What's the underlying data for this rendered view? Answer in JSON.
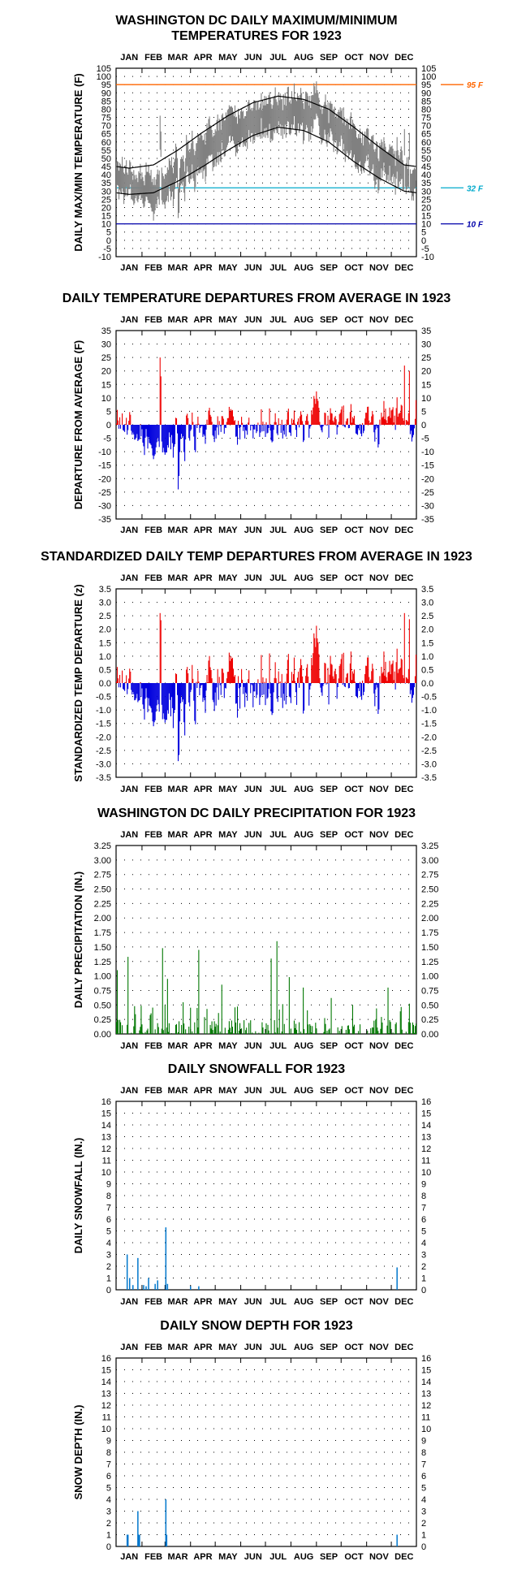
{
  "months": [
    "JAN",
    "FEB",
    "MAR",
    "APR",
    "MAY",
    "JUN",
    "JUL",
    "AUG",
    "SEP",
    "OCT",
    "NOV",
    "DEC"
  ],
  "colors": {
    "red": "#ee0000",
    "blue": "#0000dd",
    "green": "#007700",
    "snow": "#0077cc",
    "obs": "#808080",
    "orange": "#ff6600",
    "cyan": "#00aacc",
    "navy": "#0000aa"
  },
  "panels": [
    {
      "id": "temp",
      "title": [
        "WASHINGTON DC DAILY MAXIMUM/MINIMUM",
        "TEMPERATURES FOR 1923"
      ],
      "ylabel": "DAILY MAX/MIN TEMPERATURE (F)",
      "ymin": -10,
      "ymax": 105,
      "step": 5,
      "decimals": 0
    },
    {
      "id": "dep",
      "title": [
        "DAILY TEMPERATURE DEPARTURES FROM AVERAGE IN 1923"
      ],
      "ylabel": "DEPARTURE FROM AVERAGE (F)",
      "ymin": -35,
      "ymax": 35,
      "step": 5,
      "decimals": 0
    },
    {
      "id": "std",
      "title": [
        "STANDARDIZED DAILY TEMP DEPARTURES FROM AVERAGE IN 1923"
      ],
      "ylabel": "STANDARDIZED TEMP DEPARTURE (z)",
      "ymin": -3.5,
      "ymax": 3.5,
      "step": 0.5,
      "decimals": 1
    },
    {
      "id": "prcp",
      "title": [
        "WASHINGTON DC DAILY PRECIPITATION FOR 1923"
      ],
      "ylabel": "DAILY PRECIPITATION (IN.)",
      "ymin": 0,
      "ymax": 3.25,
      "step": 0.25,
      "decimals": 2
    },
    {
      "id": "snow",
      "title": [
        "DAILY SNOWFALL FOR 1923"
      ],
      "ylabel": "DAILY SNOWFALL (IN.)",
      "ymin": 0,
      "ymax": 16,
      "step": 1,
      "decimals": 0
    },
    {
      "id": "depth",
      "title": [
        "DAILY SNOW DEPTH FOR 1923"
      ],
      "ylabel": "SNOW DEPTH (IN.)",
      "ymin": 0,
      "ymax": 16,
      "step": 1,
      "decimals": 0
    }
  ],
  "ref_lines": [
    {
      "value": 95,
      "label": "95 F",
      "color": "#ff6600"
    },
    {
      "value": 32,
      "label": "32 F",
      "color": "#00aacc"
    },
    {
      "value": 10,
      "label": "10 F",
      "color": "#0000aa"
    }
  ],
  "chart_data": [
    {
      "type": "area",
      "title": "WASHINGTON DC DAILY MAXIMUM/MINIMUM TEMPERATURES FOR 1923",
      "ylabel": "DAILY MAX/MIN TEMPERATURE (F)",
      "ylim": [
        -10,
        105
      ],
      "normal_high_monthly": [
        44,
        46,
        55,
        66,
        76,
        84,
        88,
        86,
        80,
        69,
        57,
        46
      ],
      "normal_low_monthly": [
        28,
        29,
        36,
        45,
        55,
        64,
        69,
        67,
        60,
        48,
        38,
        30
      ],
      "observed_high_monthly_approx": [
        46,
        38,
        53,
        64,
        80,
        87,
        88,
        86,
        83,
        68,
        57,
        51
      ],
      "observed_low_monthly_approx": [
        32,
        24,
        34,
        44,
        56,
        65,
        70,
        68,
        61,
        47,
        37,
        35
      ],
      "extremes": {
        "max_high": 97,
        "min_low": 12
      }
    },
    {
      "type": "bar",
      "title": "DAILY TEMPERATURE DEPARTURES FROM AVERAGE IN 1923",
      "ylabel": "DEPARTURE FROM AVERAGE (F)",
      "ylim": [
        -35,
        35
      ],
      "monthly_departure_approx": [
        3,
        -8,
        -2,
        -2,
        2,
        -1,
        1,
        0,
        2,
        -1,
        0,
        5
      ],
      "max": 25,
      "min": -24
    },
    {
      "type": "bar",
      "title": "STANDARDIZED DAILY TEMP DEPARTURES FROM AVERAGE IN 1923",
      "ylabel": "STANDARDIZED TEMP DEPARTURE (z)",
      "ylim": [
        -3.5,
        3.5
      ],
      "max": 2.6,
      "min": -2.9
    },
    {
      "type": "bar",
      "title": "WASHINGTON DC DAILY PRECIPITATION FOR 1923",
      "ylabel": "DAILY PRECIPITATION (IN.)",
      "ylim": [
        0,
        3.25
      ],
      "peaks": [
        {
          "day": 1,
          "value": 1.1
        },
        {
          "day": 14,
          "value": 1.33
        },
        {
          "day": 56,
          "value": 1.48
        },
        {
          "day": 62,
          "value": 0.95
        },
        {
          "day": 100,
          "value": 1.45
        },
        {
          "day": 128,
          "value": 0.85
        },
        {
          "day": 188,
          "value": 1.3
        },
        {
          "day": 195,
          "value": 1.6
        },
        {
          "day": 210,
          "value": 0.98
        },
        {
          "day": 227,
          "value": 0.8
        },
        {
          "day": 261,
          "value": 0.62
        },
        {
          "day": 330,
          "value": 0.8
        }
      ]
    },
    {
      "type": "bar",
      "title": "DAILY SNOWFALL FOR 1923",
      "ylabel": "DAILY SNOWFALL (IN.)",
      "ylim": [
        0,
        16
      ],
      "days": [
        13,
        16,
        20,
        26,
        33,
        36,
        39,
        47,
        50,
        60,
        62,
        90,
        100,
        341
      ],
      "values": [
        3.0,
        1.0,
        0.4,
        2.7,
        0.4,
        0.3,
        1.0,
        0.5,
        0.8,
        5.3,
        0.5,
        0.3,
        0.3,
        1.9
      ]
    },
    {
      "type": "bar",
      "title": "DAILY SNOW DEPTH FOR 1923",
      "ylabel": "SNOW DEPTH (IN.)",
      "ylim": [
        0,
        16
      ],
      "days": [
        13,
        14,
        26,
        27,
        28,
        60,
        61,
        341
      ],
      "values": [
        1,
        1,
        3,
        1,
        1,
        4,
        1,
        1
      ]
    }
  ]
}
